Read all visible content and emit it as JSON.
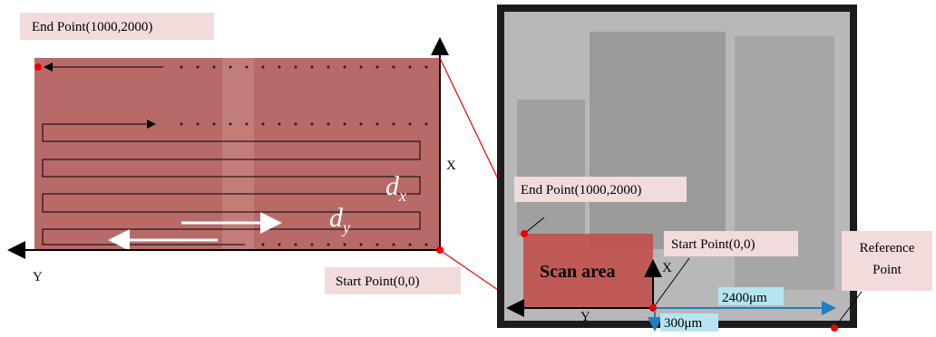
{
  "left_panel": {
    "end_label": "End Point(1000,2000)",
    "start_label": "Start Point(0,0)",
    "axis_x": "X",
    "axis_y": "Y",
    "dx": {
      "symbol": "d",
      "subscript": "x"
    },
    "dy": {
      "symbol": "d",
      "subscript": "y"
    }
  },
  "right_panel": {
    "end_label": "End Point(1000,2000)",
    "start_label": "Start Point(0,0)",
    "scan_area": "Scan  area",
    "axis_x": "X",
    "axis_y": "Y",
    "dim_horizontal": "2400μm",
    "dim_vertical": "300μm",
    "reference_label": "Reference Point"
  }
}
